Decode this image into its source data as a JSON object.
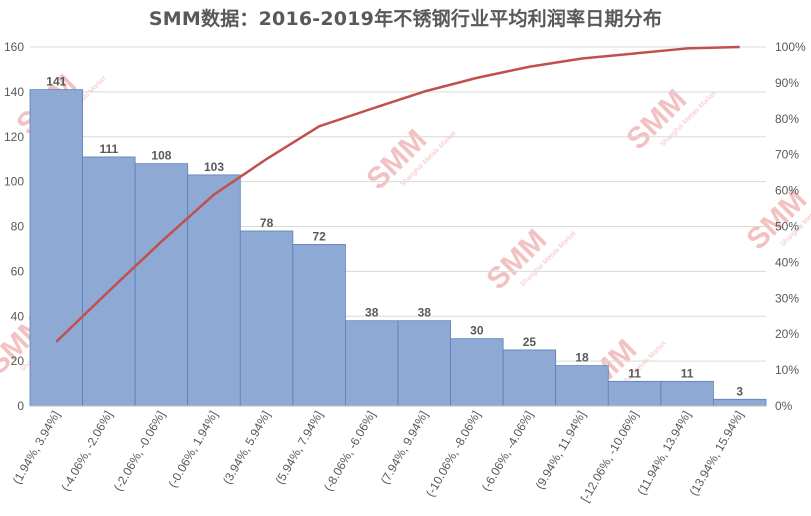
{
  "chart_data": {
    "type": "bar",
    "title": "SMM数据：2016-2019年不锈钢行业平均利润率日期分布",
    "categories": [
      "(1.94%, 3.94%]",
      "(-4.06%, -2.06%]",
      "(-2.06%, -0.06%]",
      "(-0.06%, 1.94%]",
      "(3.94%, 5.94%]",
      "(5.94%, 7.94%]",
      "(-8.06%, -6.06%]",
      "(7.94%, 9.94%]",
      "(-10.06%, -8.06%]",
      "(-6.06%, -4.06%]",
      "(9.94%, 11.94%]",
      "[-12.06%, -10.06%]",
      "(11.94%, 13.94%]",
      "(13.94%, 15.94%]"
    ],
    "series": [
      {
        "values": [
          141,
          111,
          108,
          103,
          78,
          72,
          38,
          38,
          30,
          25,
          18,
          11,
          11,
          3
        ]
      },
      {
        "values": [
          17.9,
          32.0,
          45.8,
          58.9,
          68.8,
          77.9,
          82.8,
          87.6,
          91.4,
          94.5,
          96.8,
          98.2,
          99.6,
          100.0
        ]
      }
    ],
    "y_ticks": [
      "0",
      "20",
      "40",
      "60",
      "80",
      "100",
      "120",
      "140",
      "160"
    ],
    "y2_ticks": [
      "0%",
      "10%",
      "20%",
      "30%",
      "40%",
      "50%",
      "60%",
      "70%",
      "80%",
      "90%",
      "100%"
    ],
    "ylim": [
      0,
      160
    ],
    "y2lim": [
      0,
      100
    ],
    "grid": true,
    "bar_color": "#8ea9d4",
    "bar_edge": "#5b7fb8",
    "line_color": "#c0504d",
    "watermark": {
      "text": "SMM",
      "sub": "Shanghai Metals Market",
      "color": "#e88f8f"
    }
  }
}
